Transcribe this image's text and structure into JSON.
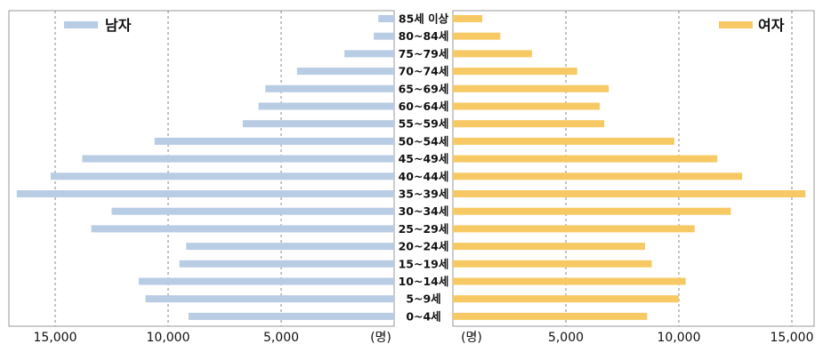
{
  "chart_data": {
    "type": "bar",
    "title": "",
    "categories": [
      "85세 이상",
      "80~84세",
      "75~79세",
      "70~74세",
      "65~69세",
      "60~64세",
      "55~59세",
      "50~54세",
      "45~49세",
      "40~44세",
      "35~39세",
      "30~34세",
      "25~29세",
      "20~24세",
      "15~19세",
      "10~14세",
      "5~9세",
      "0~4세"
    ],
    "series": [
      {
        "name": "남자",
        "color": "#b8cce4",
        "values": [
          700,
          900,
          2200,
          4300,
          5700,
          6000,
          6700,
          10600,
          13800,
          15200,
          16700,
          12500,
          13400,
          9200,
          9500,
          11300,
          11000,
          9100
        ]
      },
      {
        "name": "여자",
        "color": "#f7c964",
        "values": [
          1300,
          2100,
          3500,
          5500,
          6900,
          6500,
          6700,
          9800,
          11700,
          12800,
          15600,
          12300,
          10700,
          8500,
          8800,
          10300,
          10000,
          8600
        ]
      }
    ],
    "x_ticks_left": [
      "15,000",
      "10,000",
      "5,000"
    ],
    "x_ticks_right": [
      "5,000",
      "10,000",
      "15,000"
    ],
    "unit_label": "(명)",
    "xlim": [
      0,
      17000
    ],
    "grid": true,
    "legend_left": "top-left",
    "legend_right": "top-right"
  }
}
